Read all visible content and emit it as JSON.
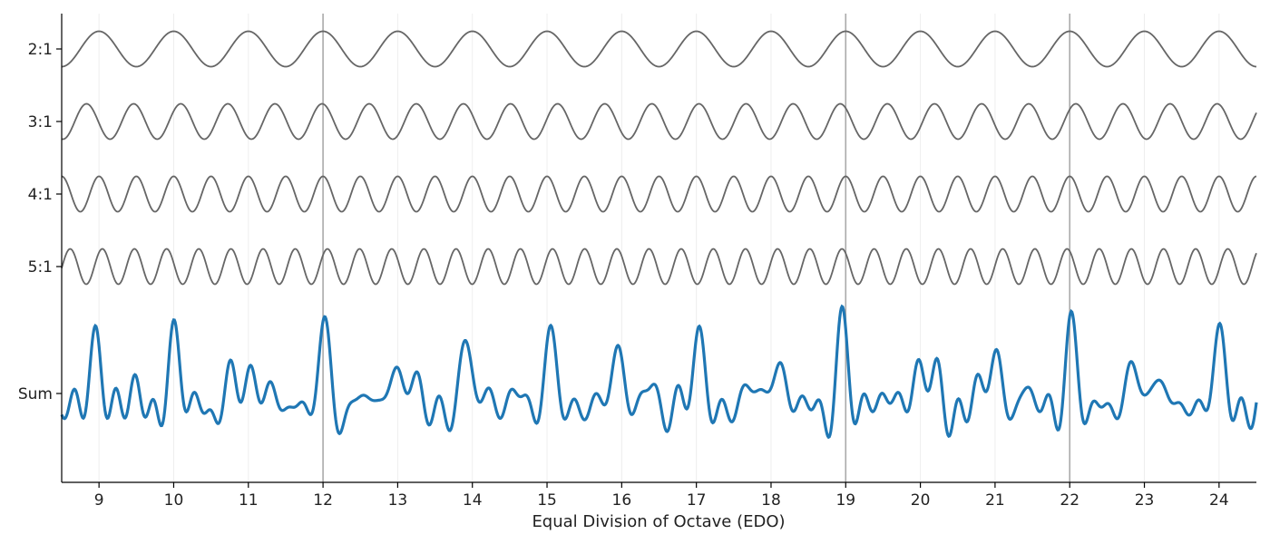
{
  "chart_data": {
    "type": "line",
    "xlabel": "Equal Division of Octave (EDO)",
    "xlim": [
      8.5,
      24.5
    ],
    "x_ticks": [
      9,
      10,
      11,
      12,
      13,
      14,
      15,
      16,
      17,
      18,
      19,
      20,
      21,
      22,
      23,
      24
    ],
    "highlighted_x": [
      12,
      19,
      22
    ],
    "grid": "vertical, at integer x",
    "series": [
      {
        "name": "2:1",
        "ratio": 2,
        "harmonic_factor": 1.0,
        "style": "thin",
        "color": "#666666"
      },
      {
        "name": "3:1",
        "ratio": 3,
        "harmonic_factor": 1.585,
        "style": "thin",
        "color": "#666666"
      },
      {
        "name": "4:1",
        "ratio": 4,
        "harmonic_factor": 2.0,
        "style": "thin",
        "color": "#666666"
      },
      {
        "name": "5:1",
        "ratio": 5,
        "harmonic_factor": 2.3219,
        "style": "thin",
        "color": "#666666"
      },
      {
        "name": "Sum",
        "style": "thick",
        "color": "#1f77b4"
      }
    ],
    "colors": {
      "component": "#666666",
      "sum": "#1f77b4",
      "highlight_line": "#aaaaaa",
      "grid": "#eeeeee",
      "axis": "#000000"
    }
  }
}
